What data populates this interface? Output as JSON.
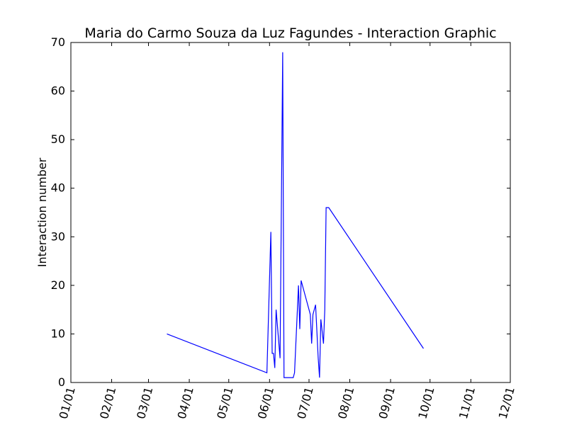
{
  "chart_data": {
    "type": "line",
    "title": "Maria do Carmo Souza da Luz Fagundes - Interaction Graphic",
    "xlabel": "",
    "ylabel": "Interaction number",
    "x_axis_type": "date",
    "x_ticks": [
      "01/01",
      "02/01",
      "03/01",
      "04/01",
      "05/01",
      "06/01",
      "07/01",
      "08/01",
      "09/01",
      "10/01",
      "11/01",
      "12/01"
    ],
    "xlim": [
      "01/01",
      "12/01"
    ],
    "y_ticks": [
      0,
      10,
      20,
      30,
      40,
      50,
      60,
      70
    ],
    "ylim": [
      0,
      70
    ],
    "grid": false,
    "series_color": "#0000ff",
    "series": [
      {
        "x": [
          "03/15",
          "05/30",
          "06/02",
          "06/03",
          "06/04",
          "06/05",
          "06/06",
          "06/09",
          "06/11",
          "06/12",
          "06/19",
          "06/20",
          "06/23",
          "06/24",
          "06/25",
          "07/02",
          "07/03",
          "07/04",
          "07/06",
          "07/08",
          "07/09",
          "07/10",
          "07/12",
          "07/13",
          "07/14",
          "07/15",
          "07/16",
          "09/26"
        ],
        "y": [
          10,
          2,
          31,
          6,
          6,
          3,
          15,
          5,
          68,
          1,
          1,
          2,
          20,
          11,
          21,
          14,
          8,
          14,
          16,
          5,
          1,
          13,
          8,
          15,
          36,
          36,
          36,
          7
        ]
      }
    ]
  }
}
